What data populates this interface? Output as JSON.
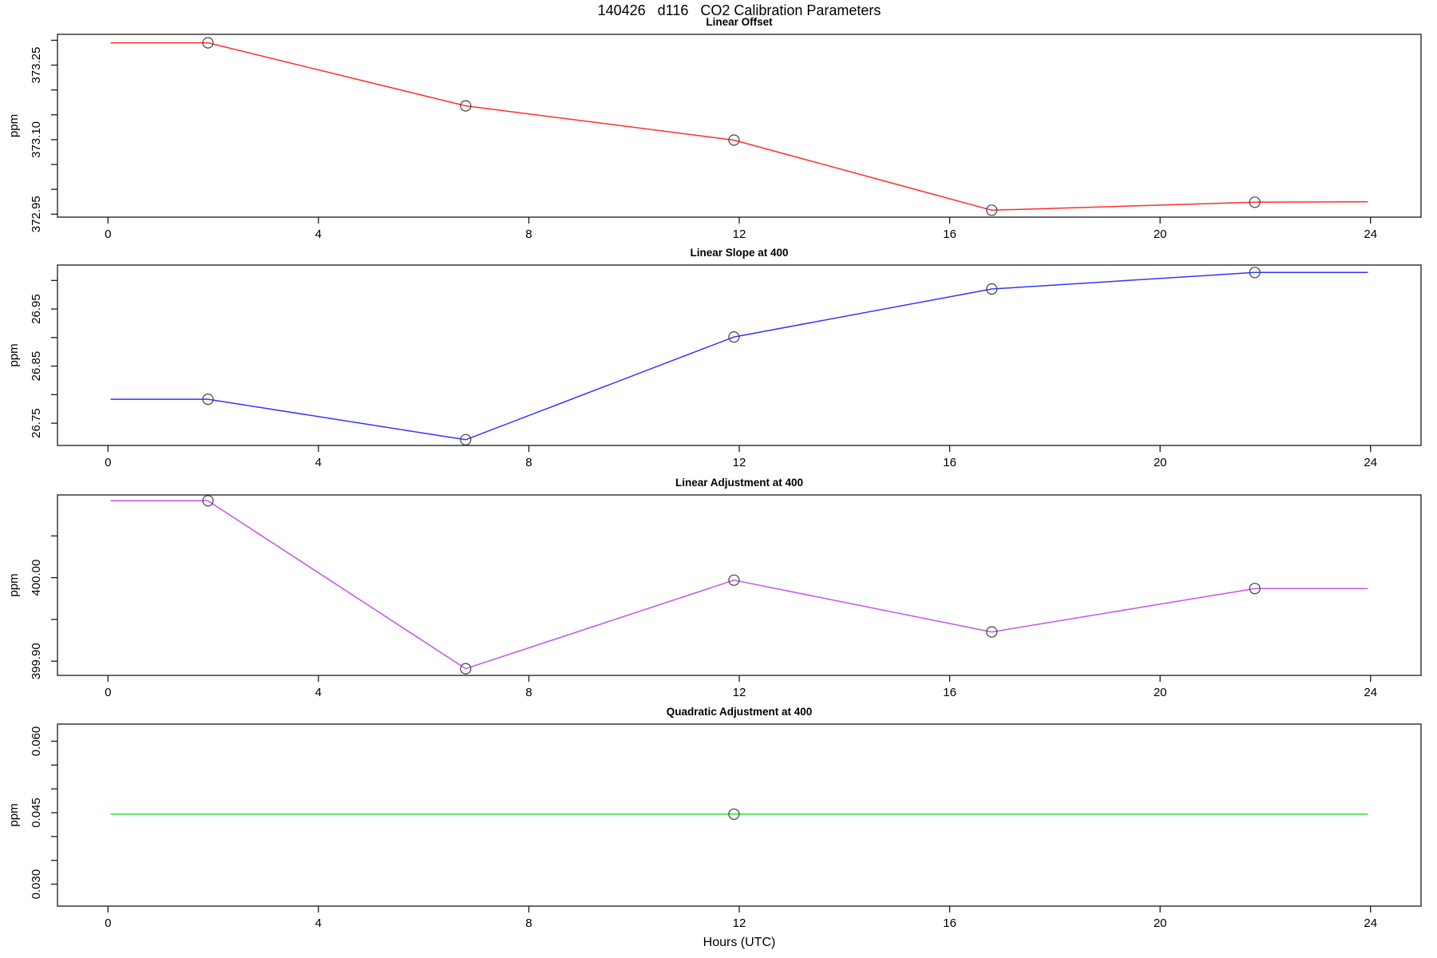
{
  "title": "140426   d116   CO2 Calibration Parameters",
  "xlabel": "Hours (UTC)",
  "chart_data": [
    {
      "type": "line",
      "title": "Linear Offset",
      "color": "#ff2e2e",
      "ylabel": "ppm",
      "xlim": [
        -0.96,
        24.96
      ],
      "xticks": [
        0,
        4,
        8,
        12,
        16,
        20,
        24
      ],
      "ylim": [
        372.944,
        373.312
      ],
      "yticks": [
        372.95,
        373.0,
        373.05,
        373.1,
        373.15,
        373.2,
        373.25,
        373.3
      ],
      "ytick_labels": [
        {
          "value": 372.95,
          "label": "372.95"
        },
        {
          "value": 373.1,
          "label": "373.10"
        },
        {
          "value": 373.25,
          "label": "373.25"
        }
      ],
      "line": {
        "x": [
          0.05,
          1.9,
          6.8,
          11.9,
          16.8,
          21.8,
          23.95
        ],
        "y": [
          373.295,
          373.295,
          373.168,
          373.099,
          372.958,
          372.974,
          372.975
        ]
      },
      "markers": [
        {
          "x": 1.9,
          "y": 373.295
        },
        {
          "x": 6.8,
          "y": 373.168
        },
        {
          "x": 11.9,
          "y": 373.099
        },
        {
          "x": 16.8,
          "y": 372.958
        },
        {
          "x": 21.8,
          "y": 372.974
        }
      ]
    },
    {
      "type": "line",
      "title": "Linear Slope at 400",
      "color": "#3333ff",
      "ylabel": "ppm",
      "xlim": [
        -0.96,
        24.96
      ],
      "xticks": [
        0,
        4,
        8,
        12,
        16,
        20,
        24
      ],
      "ylim": [
        26.711,
        27.027
      ],
      "yticks": [
        26.75,
        26.8,
        26.85,
        26.9,
        26.95,
        27.0
      ],
      "ytick_labels": [
        {
          "value": 26.75,
          "label": "26.75"
        },
        {
          "value": 26.85,
          "label": "26.85"
        },
        {
          "value": 26.95,
          "label": "26.95"
        }
      ],
      "line": {
        "x": [
          0.05,
          1.9,
          6.8,
          11.9,
          16.8,
          21.8,
          23.95
        ],
        "y": [
          26.792,
          26.792,
          26.721,
          26.901,
          26.985,
          27.014,
          27.014
        ]
      },
      "markers": [
        {
          "x": 1.9,
          "y": 26.792
        },
        {
          "x": 6.8,
          "y": 26.721
        },
        {
          "x": 11.9,
          "y": 26.901
        },
        {
          "x": 16.8,
          "y": 26.985
        },
        {
          "x": 21.8,
          "y": 27.014
        }
      ]
    },
    {
      "type": "line",
      "title": "Linear Adjustment at 400",
      "color": "#c653ec",
      "ylabel": "ppm",
      "xlim": [
        -0.96,
        24.96
      ],
      "xticks": [
        0,
        4,
        8,
        12,
        16,
        20,
        24
      ],
      "ylim": [
        399.883,
        400.099
      ],
      "yticks": [
        399.9,
        399.95,
        400.0,
        400.05
      ],
      "ytick_labels": [
        {
          "value": 399.9,
          "label": "399.90"
        },
        {
          "value": 400.0,
          "label": "400.00"
        }
      ],
      "line": {
        "x": [
          0.05,
          1.9,
          6.8,
          11.9,
          16.8,
          21.8,
          23.95
        ],
        "y": [
          400.092,
          400.092,
          399.891,
          399.997,
          399.935,
          399.987,
          399.987
        ]
      },
      "markers": [
        {
          "x": 1.9,
          "y": 400.092
        },
        {
          "x": 6.8,
          "y": 399.891
        },
        {
          "x": 11.9,
          "y": 399.997
        },
        {
          "x": 16.8,
          "y": 399.935
        },
        {
          "x": 21.8,
          "y": 399.987
        }
      ]
    },
    {
      "type": "line",
      "title": "Quadratic Adjustment at 400",
      "color": "#2ee62e",
      "ylabel": "ppm",
      "xlim": [
        -0.96,
        24.96
      ],
      "xticks": [
        0,
        4,
        8,
        12,
        16,
        20,
        24
      ],
      "ylim": [
        0.0254,
        0.0636
      ],
      "yticks": [
        0.03,
        0.035,
        0.04,
        0.045,
        0.05,
        0.055,
        0.06
      ],
      "ytick_labels": [
        {
          "value": 0.03,
          "label": "0.030"
        },
        {
          "value": 0.045,
          "label": "0.045"
        },
        {
          "value": 0.06,
          "label": "0.060"
        }
      ],
      "line": {
        "x": [
          0.05,
          23.95
        ],
        "y": [
          0.0447,
          0.0447
        ]
      },
      "markers": [
        {
          "x": 11.9,
          "y": 0.0447
        }
      ]
    }
  ]
}
